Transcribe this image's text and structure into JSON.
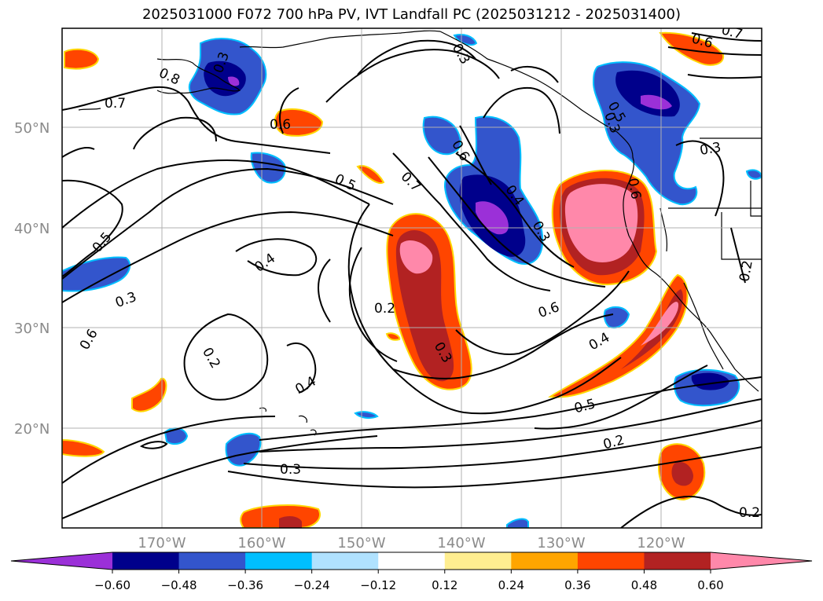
{
  "title": "2025031000 F072 700 hPa PV, IVT Landfall PC (2025031212 - 2025031400)",
  "lat_labels": [
    "50°N",
    "40°N",
    "30°N",
    "20°N"
  ],
  "lon_labels": [
    "170°W",
    "160°W",
    "150°W",
    "140°W",
    "130°W",
    "120°W"
  ],
  "contour_labels": [
    "0.8",
    "0.7",
    "0.6",
    "0.5",
    "0.3",
    "0.6",
    "0.5",
    "0.7",
    "0.4",
    "0.3",
    "0.6",
    "0.6",
    "0.2",
    "0.3",
    "0.5",
    "0.4",
    "0.3",
    "0.2",
    "0.2",
    "0.4",
    "0.3",
    "0.6",
    "0.4",
    "0.5",
    "0.2",
    "0.3",
    "0.2",
    "0.6",
    "0.7",
    "0.3",
    "0.3"
  ],
  "colorbar": {
    "colors": [
      "#9b30d8",
      "#00008b",
      "#3355cc",
      "#00bfff",
      "#b0e2ff",
      "#ffffff",
      "#ffee90",
      "#ffa500",
      "#ff4500",
      "#b22222",
      "#ff88aa"
    ],
    "tick_labels": [
      "−0.60",
      "−0.48",
      "−0.36",
      "−0.24",
      "−0.12",
      "0.12",
      "0.24",
      "0.36",
      "0.48",
      "0.60"
    ]
  }
}
